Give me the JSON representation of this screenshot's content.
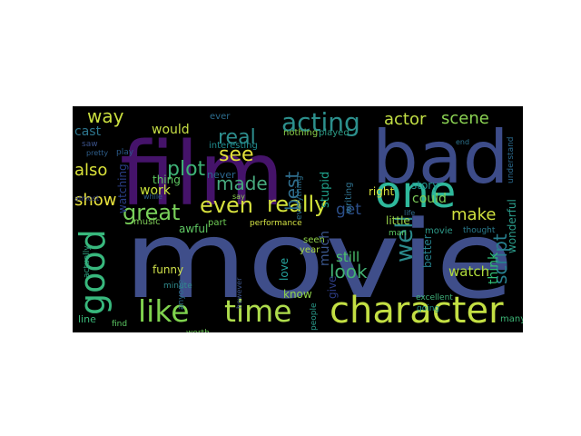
{
  "wordcloud": {
    "background": "#000000",
    "words": [
      {
        "text": "movie",
        "color": "#3f4e8a"
      },
      {
        "text": "film",
        "color": "#45136a"
      },
      {
        "text": "bad",
        "color": "#3d4c89"
      },
      {
        "text": "one",
        "color": "#2fb99c"
      },
      {
        "text": "character",
        "color": "#c3df43"
      },
      {
        "text": "like",
        "color": "#7fd34e"
      },
      {
        "text": "time",
        "color": "#aedc4c"
      },
      {
        "text": "good",
        "color": "#38b87d"
      },
      {
        "text": "acting",
        "color": "#2c8f8c"
      },
      {
        "text": "really",
        "color": "#d2e23a"
      },
      {
        "text": "even",
        "color": "#d7e13e"
      },
      {
        "text": "great",
        "color": "#79d05a"
      },
      {
        "text": "plot",
        "color": "#3eb377"
      },
      {
        "text": "see",
        "color": "#e4e23a"
      },
      {
        "text": "made",
        "color": "#47aa7e"
      },
      {
        "text": "real",
        "color": "#2d8d8d"
      },
      {
        "text": "well",
        "color": "#2b8a8c"
      },
      {
        "text": "actor",
        "color": "#c2df45"
      },
      {
        "text": "scene",
        "color": "#8bd353"
      },
      {
        "text": "way",
        "color": "#c9de3f"
      },
      {
        "text": "also",
        "color": "#dae23a"
      },
      {
        "text": "show",
        "color": "#e9e33d"
      },
      {
        "text": "make",
        "color": "#d0e03e"
      },
      {
        "text": "could",
        "color": "#7dce59"
      },
      {
        "text": "look",
        "color": "#42b174"
      },
      {
        "text": "script",
        "color": "#277f8e"
      },
      {
        "text": "story",
        "color": "#21908d"
      },
      {
        "text": "best",
        "color": "#2f6e8e"
      },
      {
        "text": "get",
        "color": "#2c4f8a"
      },
      {
        "text": "much",
        "color": "#3a568c"
      },
      {
        "text": "stupid",
        "color": "#1f9e89"
      },
      {
        "text": "work",
        "color": "#cae43a"
      },
      {
        "text": "thing",
        "color": "#5ec962"
      },
      {
        "text": "would",
        "color": "#c7df45"
      },
      {
        "text": "cast",
        "color": "#2d768e"
      },
      {
        "text": "watching",
        "color": "#2a3e86"
      },
      {
        "text": "watch",
        "color": "#b1dc3d"
      },
      {
        "text": "still",
        "color": "#4ac16d"
      },
      {
        "text": "better",
        "color": "#26828e"
      },
      {
        "text": "right",
        "color": "#d8e13b"
      },
      {
        "text": "wonderful",
        "color": "#2b9b8a"
      },
      {
        "text": "think",
        "color": "#30be77"
      },
      {
        "text": "love",
        "color": "#26a6a0"
      },
      {
        "text": "know",
        "color": "#8fd44c"
      },
      {
        "text": "give",
        "color": "#2d3c84"
      },
      {
        "text": "music",
        "color": "#7fcd58"
      },
      {
        "text": "awful",
        "color": "#5fc863"
      },
      {
        "text": "part",
        "color": "#6fcd56"
      },
      {
        "text": "little",
        "color": "#9bd54b"
      },
      {
        "text": "funny",
        "color": "#cfe04a"
      },
      {
        "text": "never",
        "color": "#2b668e"
      },
      {
        "text": "year",
        "color": "#a9db45"
      },
      {
        "text": "ever",
        "color": "#2c6d8e"
      },
      {
        "text": "seen",
        "color": "#8fd249"
      },
      {
        "text": "performance",
        "color": "#d4e345"
      },
      {
        "text": "line",
        "color": "#3ab879"
      },
      {
        "text": "many",
        "color": "#3db576"
      },
      {
        "text": "actually",
        "color": "#2ea380"
      },
      {
        "text": "people",
        "color": "#2a9a8a"
      },
      {
        "text": "interesting",
        "color": "#1f8a8d"
      },
      {
        "text": "nothing",
        "color": "#8bd04a"
      },
      {
        "text": "played",
        "color": "#2d9b86"
      },
      {
        "text": "writing",
        "color": "#2f718e"
      },
      {
        "text": "thought",
        "color": "#2a7b8e"
      },
      {
        "text": "man",
        "color": "#5bc561"
      },
      {
        "text": "excellent",
        "color": "#3fb27a"
      },
      {
        "text": "going",
        "color": "#1f958b"
      },
      {
        "text": "worth",
        "color": "#6dcd59"
      },
      {
        "text": "minute",
        "color": "#2f8a8c"
      },
      {
        "text": "anyone",
        "color": "#2f6f8e"
      },
      {
        "text": "pretty",
        "color": "#2f5f8c"
      },
      {
        "text": "saw",
        "color": "#3b5289"
      },
      {
        "text": "play",
        "color": "#2a5a8a"
      },
      {
        "text": "find",
        "color": "#5cc863"
      },
      {
        "text": "say",
        "color": "#8dd14f"
      },
      {
        "text": "life",
        "color": "#2e6c8e"
      },
      {
        "text": "however",
        "color": "#3c548b"
      },
      {
        "text": "everything",
        "color": "#2b6f8d"
      },
      {
        "text": "understand",
        "color": "#2b6a8e"
      },
      {
        "text": "end",
        "color": "#2c738e"
      },
      {
        "text": "almost",
        "color": "#3f4a88"
      },
      {
        "text": "while",
        "color": "#2c5e8c"
      },
      {
        "text": "movie",
        "color": "#2e9b8a"
      }
    ]
  }
}
